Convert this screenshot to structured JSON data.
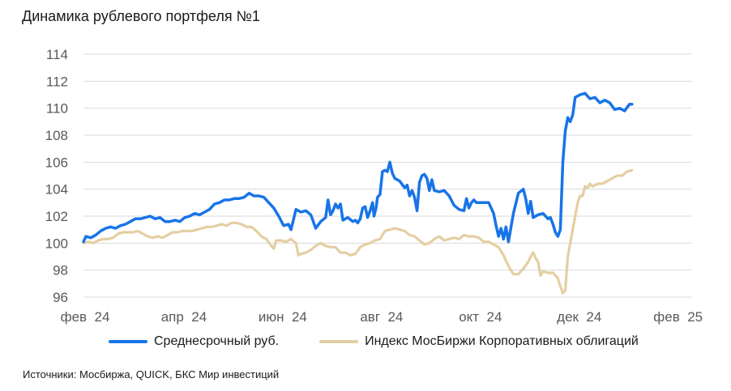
{
  "title": "Динамика рублевого портфеля №1",
  "source": "Источники: Мосбиржа, QUICK, БКС Мир инвестиций",
  "colors": {
    "series1": "#1874e8",
    "series2": "#e4cfa3",
    "grid": "#d9d9d9",
    "tick": "#595959"
  },
  "chart_data": {
    "type": "line",
    "title": "Динамика рублевого портфеля №1",
    "ylim": [
      96,
      114
    ],
    "yticks": [
      96,
      98,
      100,
      102,
      104,
      106,
      108,
      110,
      112,
      114
    ],
    "xlim": [
      0,
      12.3
    ],
    "xticks": [
      {
        "pos": 0,
        "label": "фев  24"
      },
      {
        "pos": 2,
        "label": "апр  24"
      },
      {
        "pos": 4,
        "label": "июн  24"
      },
      {
        "pos": 6,
        "label": "авг  24"
      },
      {
        "pos": 8,
        "label": "окт  24"
      },
      {
        "pos": 10,
        "label": "дек  24"
      },
      {
        "pos": 12,
        "label": "фев  25"
      }
    ],
    "grid": true,
    "legend": "bottom",
    "series": [
      {
        "name": "Среднесрочный руб.",
        "color": "#1874e8",
        "points": [
          [
            0,
            100.1
          ],
          [
            0.05,
            100.5
          ],
          [
            0.15,
            100.4
          ],
          [
            0.25,
            100.6
          ],
          [
            0.35,
            100.9
          ],
          [
            0.45,
            101.1
          ],
          [
            0.55,
            101.2
          ],
          [
            0.65,
            101.1
          ],
          [
            0.75,
            101.3
          ],
          [
            0.85,
            101.4
          ],
          [
            0.95,
            101.6
          ],
          [
            1.05,
            101.8
          ],
          [
            1.15,
            101.8
          ],
          [
            1.25,
            101.9
          ],
          [
            1.35,
            102.0
          ],
          [
            1.45,
            101.8
          ],
          [
            1.55,
            101.9
          ],
          [
            1.65,
            101.6
          ],
          [
            1.75,
            101.6
          ],
          [
            1.85,
            101.7
          ],
          [
            1.95,
            101.6
          ],
          [
            2.05,
            101.9
          ],
          [
            2.15,
            102.0
          ],
          [
            2.25,
            102.2
          ],
          [
            2.35,
            102.1
          ],
          [
            2.45,
            102.3
          ],
          [
            2.55,
            102.5
          ],
          [
            2.65,
            102.9
          ],
          [
            2.75,
            103.0
          ],
          [
            2.85,
            103.2
          ],
          [
            2.95,
            103.2
          ],
          [
            3.05,
            103.3
          ],
          [
            3.15,
            103.3
          ],
          [
            3.25,
            103.4
          ],
          [
            3.35,
            103.7
          ],
          [
            3.45,
            103.5
          ],
          [
            3.55,
            103.5
          ],
          [
            3.65,
            103.4
          ],
          [
            3.75,
            103.0
          ],
          [
            3.85,
            102.6
          ],
          [
            3.95,
            102.0
          ],
          [
            4.05,
            101.3
          ],
          [
            4.15,
            101.4
          ],
          [
            4.2,
            101.0
          ],
          [
            4.3,
            102.5
          ],
          [
            4.4,
            102.3
          ],
          [
            4.5,
            102.4
          ],
          [
            4.6,
            102.1
          ],
          [
            4.7,
            101.1
          ],
          [
            4.8,
            101.6
          ],
          [
            4.9,
            101.9
          ],
          [
            4.95,
            103.2
          ],
          [
            5.0,
            102.1
          ],
          [
            5.05,
            102.4
          ],
          [
            5.1,
            102.9
          ],
          [
            5.15,
            102.6
          ],
          [
            5.2,
            102.9
          ],
          [
            5.25,
            101.7
          ],
          [
            5.35,
            101.9
          ],
          [
            5.45,
            101.6
          ],
          [
            5.5,
            101.7
          ],
          [
            5.55,
            101.5
          ],
          [
            5.6,
            101.8
          ],
          [
            5.65,
            102.6
          ],
          [
            5.7,
            102.7
          ],
          [
            5.75,
            101.9
          ],
          [
            5.8,
            102.4
          ],
          [
            5.85,
            103.0
          ],
          [
            5.88,
            102.0
          ],
          [
            5.92,
            102.6
          ],
          [
            5.95,
            103.4
          ],
          [
            6.0,
            103.6
          ],
          [
            6.05,
            105.3
          ],
          [
            6.1,
            105.4
          ],
          [
            6.15,
            105.3
          ],
          [
            6.2,
            106.0
          ],
          [
            6.25,
            105.2
          ],
          [
            6.3,
            104.8
          ],
          [
            6.4,
            104.6
          ],
          [
            6.5,
            104.1
          ],
          [
            6.55,
            104.3
          ],
          [
            6.6,
            103.5
          ],
          [
            6.65,
            103.9
          ],
          [
            6.7,
            103.4
          ],
          [
            6.75,
            102.4
          ],
          [
            6.8,
            104.5
          ],
          [
            6.85,
            105.0
          ],
          [
            6.9,
            105.1
          ],
          [
            6.95,
            104.8
          ],
          [
            7.0,
            103.9
          ],
          [
            7.05,
            104.7
          ],
          [
            7.1,
            103.9
          ],
          [
            7.2,
            103.8
          ],
          [
            7.3,
            103.9
          ],
          [
            7.4,
            103.5
          ],
          [
            7.5,
            102.8
          ],
          [
            7.6,
            102.5
          ],
          [
            7.7,
            102.4
          ],
          [
            7.75,
            103.3
          ],
          [
            7.8,
            102.6
          ],
          [
            7.85,
            103.0
          ],
          [
            7.9,
            103.2
          ],
          [
            7.95,
            103.0
          ],
          [
            8.1,
            103.0
          ],
          [
            8.2,
            103.0
          ],
          [
            8.3,
            102.2
          ],
          [
            8.35,
            101.3
          ],
          [
            8.4,
            100.5
          ],
          [
            8.45,
            101.1
          ],
          [
            8.5,
            100.3
          ],
          [
            8.55,
            101.2
          ],
          [
            8.6,
            100.1
          ],
          [
            8.7,
            102.2
          ],
          [
            8.8,
            103.7
          ],
          [
            8.9,
            104.0
          ],
          [
            8.95,
            103.3
          ],
          [
            9.0,
            102.2
          ],
          [
            9.05,
            103.1
          ],
          [
            9.1,
            101.9
          ],
          [
            9.2,
            102.1
          ],
          [
            9.3,
            102.2
          ],
          [
            9.4,
            101.8
          ],
          [
            9.45,
            101.9
          ],
          [
            9.5,
            101.4
          ],
          [
            9.55,
            100.8
          ],
          [
            9.6,
            100.5
          ],
          [
            9.65,
            101.0
          ],
          [
            9.7,
            106.0
          ],
          [
            9.75,
            108.3
          ],
          [
            9.8,
            109.3
          ],
          [
            9.85,
            109.0
          ],
          [
            9.9,
            109.5
          ],
          [
            9.95,
            110.8
          ],
          [
            10.05,
            111.0
          ],
          [
            10.15,
            111.1
          ],
          [
            10.2,
            110.9
          ],
          [
            10.25,
            110.7
          ],
          [
            10.35,
            110.8
          ],
          [
            10.45,
            110.4
          ],
          [
            10.55,
            110.6
          ],
          [
            10.65,
            110.4
          ],
          [
            10.75,
            109.9
          ],
          [
            10.85,
            110.0
          ],
          [
            10.95,
            109.8
          ],
          [
            11.05,
            110.3
          ],
          [
            11.1,
            110.3
          ]
        ]
      },
      {
        "name": "Индекс МосБиржи Корпоративных облигаций",
        "color": "#e4cfa3",
        "points": [
          [
            0,
            100.0
          ],
          [
            0.1,
            100.1
          ],
          [
            0.2,
            100.0
          ],
          [
            0.3,
            100.2
          ],
          [
            0.4,
            100.3
          ],
          [
            0.5,
            100.3
          ],
          [
            0.6,
            100.4
          ],
          [
            0.7,
            100.7
          ],
          [
            0.8,
            100.8
          ],
          [
            0.9,
            100.8
          ],
          [
            1.0,
            100.8
          ],
          [
            1.1,
            100.9
          ],
          [
            1.2,
            100.7
          ],
          [
            1.3,
            100.5
          ],
          [
            1.4,
            100.4
          ],
          [
            1.5,
            100.5
          ],
          [
            1.6,
            100.4
          ],
          [
            1.7,
            100.6
          ],
          [
            1.8,
            100.8
          ],
          [
            1.9,
            100.8
          ],
          [
            2.0,
            100.9
          ],
          [
            2.1,
            100.9
          ],
          [
            2.2,
            100.9
          ],
          [
            2.3,
            101.0
          ],
          [
            2.4,
            101.1
          ],
          [
            2.5,
            101.2
          ],
          [
            2.6,
            101.2
          ],
          [
            2.7,
            101.3
          ],
          [
            2.8,
            101.4
          ],
          [
            2.9,
            101.3
          ],
          [
            3.0,
            101.5
          ],
          [
            3.1,
            101.5
          ],
          [
            3.2,
            101.4
          ],
          [
            3.3,
            101.2
          ],
          [
            3.4,
            101.2
          ],
          [
            3.5,
            100.9
          ],
          [
            3.6,
            100.5
          ],
          [
            3.7,
            100.3
          ],
          [
            3.8,
            99.8
          ],
          [
            3.85,
            99.6
          ],
          [
            3.9,
            100.2
          ],
          [
            4.0,
            100.2
          ],
          [
            4.1,
            100.1
          ],
          [
            4.2,
            100.3
          ],
          [
            4.3,
            100.0
          ],
          [
            4.35,
            99.1
          ],
          [
            4.4,
            99.2
          ],
          [
            4.5,
            99.3
          ],
          [
            4.6,
            99.5
          ],
          [
            4.7,
            99.8
          ],
          [
            4.8,
            100.0
          ],
          [
            4.9,
            99.8
          ],
          [
            5.0,
            99.7
          ],
          [
            5.1,
            99.7
          ],
          [
            5.2,
            99.3
          ],
          [
            5.3,
            99.3
          ],
          [
            5.4,
            99.1
          ],
          [
            5.5,
            99.2
          ],
          [
            5.6,
            99.7
          ],
          [
            5.7,
            99.9
          ],
          [
            5.8,
            100.0
          ],
          [
            5.9,
            100.2
          ],
          [
            6.0,
            100.3
          ],
          [
            6.1,
            100.9
          ],
          [
            6.2,
            101.0
          ],
          [
            6.3,
            101.1
          ],
          [
            6.4,
            101.0
          ],
          [
            6.5,
            100.9
          ],
          [
            6.6,
            100.6
          ],
          [
            6.7,
            100.5
          ],
          [
            6.8,
            100.2
          ],
          [
            6.9,
            99.9
          ],
          [
            7.0,
            100.0
          ],
          [
            7.1,
            100.3
          ],
          [
            7.2,
            100.5
          ],
          [
            7.3,
            100.2
          ],
          [
            7.4,
            100.3
          ],
          [
            7.5,
            100.4
          ],
          [
            7.6,
            100.3
          ],
          [
            7.7,
            100.6
          ],
          [
            7.8,
            100.5
          ],
          [
            7.9,
            100.5
          ],
          [
            8.0,
            100.4
          ],
          [
            8.1,
            100.1
          ],
          [
            8.2,
            100.1
          ],
          [
            8.3,
            99.9
          ],
          [
            8.4,
            99.7
          ],
          [
            8.5,
            99.1
          ],
          [
            8.6,
            98.3
          ],
          [
            8.7,
            97.7
          ],
          [
            8.8,
            97.7
          ],
          [
            8.9,
            98.1
          ],
          [
            9.0,
            98.6
          ],
          [
            9.05,
            99.0
          ],
          [
            9.1,
            99.3
          ],
          [
            9.15,
            98.9
          ],
          [
            9.2,
            98.6
          ],
          [
            9.25,
            97.6
          ],
          [
            9.3,
            97.9
          ],
          [
            9.4,
            97.8
          ],
          [
            9.5,
            97.8
          ],
          [
            9.6,
            97.4
          ],
          [
            9.65,
            96.8
          ],
          [
            9.7,
            96.3
          ],
          [
            9.75,
            96.5
          ],
          [
            9.8,
            99.0
          ],
          [
            9.9,
            101.0
          ],
          [
            9.95,
            102.0
          ],
          [
            10.0,
            103.0
          ],
          [
            10.05,
            103.5
          ],
          [
            10.1,
            103.5
          ],
          [
            10.15,
            104.2
          ],
          [
            10.2,
            104.1
          ],
          [
            10.25,
            104.4
          ],
          [
            10.3,
            104.2
          ],
          [
            10.35,
            104.3
          ],
          [
            10.4,
            104.4
          ],
          [
            10.5,
            104.4
          ],
          [
            10.6,
            104.6
          ],
          [
            10.7,
            104.8
          ],
          [
            10.8,
            105.0
          ],
          [
            10.9,
            105.0
          ],
          [
            11.0,
            105.3
          ],
          [
            11.1,
            105.4
          ]
        ]
      }
    ]
  }
}
